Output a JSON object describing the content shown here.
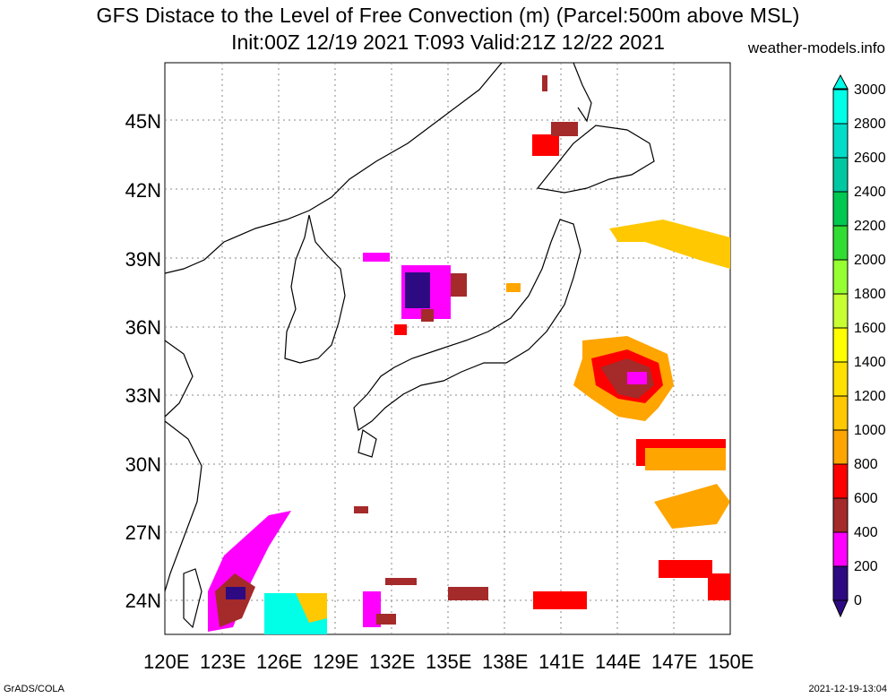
{
  "title": "GFS Distace to the Level of Free Convection (m) (Parcel:500m above MSL)",
  "subtitle": "Init:00Z 12/19 2021 T:093 Valid:21Z 12/22 2021",
  "site": "weather-models.info",
  "footer_left": "GrADS/COLA",
  "footer_right": "2021-12-19-13:04",
  "lat_labels": [
    "45N",
    "42N",
    "39N",
    "36N",
    "33N",
    "30N",
    "27N",
    "24N"
  ],
  "lon_labels": [
    "120E",
    "123E",
    "126E",
    "129E",
    "132E",
    "135E",
    "138E",
    "141E",
    "144E",
    "147E",
    "150E"
  ],
  "colorbar": {
    "labels": [
      "3000",
      "2800",
      "2600",
      "2400",
      "2200",
      "2000",
      "1800",
      "1600",
      "1400",
      "1200",
      "1000",
      "800",
      "600",
      "400",
      "200",
      "0"
    ],
    "colors": [
      "#2e0a82",
      "#ff00ff",
      "#a52a2a",
      "#ff0000",
      "#ffa500",
      "#ffc800",
      "#ffe000",
      "#ffff00",
      "#c8ff32",
      "#96ff32",
      "#32dc32",
      "#00c850",
      "#00c8a0",
      "#00dcc8",
      "#00ffe6"
    ]
  },
  "map": {
    "lon_range": [
      120,
      150
    ],
    "lat_range": [
      22.5,
      47.5
    ],
    "grid": "dotted"
  }
}
